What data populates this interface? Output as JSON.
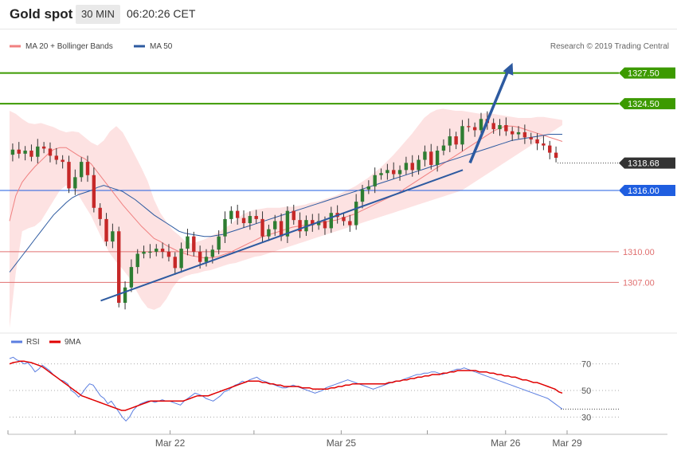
{
  "header": {
    "instrument": "Gold spot",
    "timeframe": "30 MIN",
    "time": "06:20:26 CET"
  },
  "legend": {
    "ma20_label": "MA 20 + Bollinger Bands",
    "ma50_label": "MA 50",
    "ma20_color": "#f08080",
    "ma50_color": "#2d5aa0"
  },
  "copyright": "Research © 2019 Trading Central",
  "colors": {
    "up": "#2e7d32",
    "down": "#c62828",
    "resistance": "#3c9a00",
    "pivot": "#1f5ee0",
    "support": "#e07070",
    "band": "#fde2e2",
    "trend": "#2d5aa0",
    "rsi": "#5b7ee0",
    "rsi_ma": "#e00000",
    "current": "#333333"
  },
  "chart_data": [
    {
      "type": "candlestick",
      "title": "Gold spot",
      "ylim": [
        1302.5,
        1329.5
      ],
      "levels": [
        {
          "value": 1327.5,
          "label": "1327.50",
          "kind": "resistance"
        },
        {
          "value": 1324.5,
          "label": "1324.50",
          "kind": "resistance"
        },
        {
          "value": 1318.68,
          "label": "1318.68",
          "kind": "current"
        },
        {
          "value": 1316.0,
          "label": "1316.00",
          "kind": "pivot"
        },
        {
          "value": 1310.0,
          "label": "1310.00",
          "kind": "support"
        },
        {
          "value": 1307.0,
          "label": "1307.00",
          "kind": "support"
        }
      ],
      "x_ticks": [
        "Mar 22",
        "Mar 25",
        "Mar 26",
        "Mar 29"
      ],
      "close_path": [
        1319.5,
        1320.0,
        1319.6,
        1319.9,
        1319.3,
        1320.3,
        1320.1,
        1319.4,
        1319.0,
        1318.8,
        1316.2,
        1317.3,
        1318.8,
        1317.5,
        1314.3,
        1313.2,
        1311.0,
        1312.0,
        1305.0,
        1306.5,
        1308.5,
        1309.8,
        1310.0,
        1310.0,
        1310.3,
        1310.0,
        1309.5,
        1308.4,
        1310.3,
        1311.5,
        1310.0,
        1309.0,
        1309.5,
        1310.2,
        1311.5,
        1313.2,
        1314.0,
        1313.3,
        1312.8,
        1313.5,
        1313.2,
        1311.5,
        1312.2,
        1313.0,
        1311.5,
        1314.0,
        1313.1,
        1312.0,
        1313.1,
        1312.6,
        1313.0,
        1312.3,
        1313.8,
        1313.4,
        1313.0,
        1312.6,
        1314.9,
        1316.1,
        1316.4,
        1317.5,
        1317.7,
        1318.0,
        1317.6,
        1318.0,
        1318.7,
        1318.0,
        1319.0,
        1319.8,
        1318.5,
        1319.9,
        1320.4,
        1321.3,
        1320.5,
        1322.3,
        1322.2,
        1321.9,
        1323.0,
        1322.6,
        1322.0,
        1322.4,
        1321.8,
        1321.5,
        1321.7,
        1321.2,
        1321.0,
        1320.6,
        1320.4,
        1319.7,
        1319.2
      ],
      "bb_upper": [
        1323.8,
        1323.5,
        1323.0,
        1322.6,
        1322.5,
        1322.6,
        1322.4,
        1322.2,
        1321.9,
        1321.7,
        1321.8,
        1321.7,
        1321.2,
        1320.7,
        1320.4,
        1320.9,
        1321.8,
        1322.3,
        1321.7,
        1320.6,
        1319.4,
        1318.2,
        1316.9,
        1315.1,
        1313.8,
        1312.9,
        1312.1,
        1311.6,
        1311.0,
        1310.8,
        1311.0,
        1311.2,
        1311.5,
        1311.8,
        1312.2,
        1312.6,
        1313.1,
        1313.6,
        1313.9,
        1314.1,
        1314.2,
        1314.3,
        1314.3,
        1314.3,
        1314.4,
        1314.4,
        1314.5,
        1314.6,
        1314.8,
        1314.9,
        1315.1,
        1315.3,
        1315.5,
        1315.8,
        1316.1,
        1316.4,
        1316.8,
        1317.2,
        1317.7,
        1318.2,
        1318.8,
        1319.4,
        1320.1,
        1320.8,
        1321.5,
        1322.3,
        1323.1,
        1323.6,
        1323.9,
        1324.0,
        1323.9,
        1323.8,
        1323.8,
        1323.7,
        1323.6,
        1323.5,
        1323.6,
        1323.5,
        1323.4,
        1323.3,
        1323.2,
        1323.1,
        1323.1,
        1323.1,
        1323.2,
        1323.2,
        1323.1,
        1323.0,
        1322.9
      ],
      "bb_lower": [
        1302.5,
        1308.0,
        1312.0,
        1312.3,
        1312.5,
        1313.0,
        1314.0,
        1315.0,
        1316.0,
        1316.5,
        1316.2,
        1315.5,
        1314.5,
        1313.5,
        1312.2,
        1310.9,
        1309.8,
        1309.0,
        1308.3,
        1307.5,
        1306.4,
        1305.3,
        1304.5,
        1304.3,
        1304.6,
        1305.4,
        1306.5,
        1307.3,
        1307.6,
        1307.8,
        1307.9,
        1308.1,
        1308.2,
        1308.4,
        1308.6,
        1308.8,
        1308.9,
        1309.1,
        1309.3,
        1309.5,
        1309.6,
        1309.8,
        1310.0,
        1310.2,
        1310.4,
        1310.6,
        1310.8,
        1311.0,
        1311.2,
        1311.4,
        1311.6,
        1311.8,
        1312.0,
        1312.2,
        1312.4,
        1312.6,
        1312.8,
        1313.0,
        1313.2,
        1313.4,
        1313.6,
        1313.8,
        1314.0,
        1314.2,
        1314.4,
        1314.6,
        1314.8,
        1315.0,
        1315.2,
        1315.4,
        1315.6,
        1315.8,
        1316.0,
        1316.4,
        1316.8,
        1317.2,
        1317.6,
        1318.0,
        1318.4,
        1318.8,
        1319.2,
        1319.6,
        1320.0,
        1320.4,
        1320.8,
        1321.2,
        1321.6,
        1322.0,
        1322.4
      ],
      "ma20": [
        1313.0,
        1315.5,
        1316.8,
        1317.6,
        1318.3,
        1318.9,
        1319.5,
        1320.0,
        1320.2,
        1320.2,
        1319.8,
        1319.4,
        1319.1,
        1318.6,
        1317.8,
        1317.0,
        1316.2,
        1315.4,
        1314.6,
        1313.9,
        1313.2,
        1312.5,
        1311.9,
        1311.3,
        1311.0,
        1310.6,
        1310.3,
        1310.0,
        1309.8,
        1309.6,
        1309.5,
        1309.4,
        1309.4,
        1309.5,
        1309.7,
        1309.9,
        1310.2,
        1310.5,
        1310.8,
        1311.1,
        1311.4,
        1311.6,
        1311.8,
        1312.0,
        1312.2,
        1312.4,
        1312.5,
        1312.6,
        1312.7,
        1312.8,
        1312.9,
        1313.0,
        1313.1,
        1313.3,
        1313.5,
        1313.7,
        1314.0,
        1314.3,
        1314.6,
        1314.9,
        1315.2,
        1315.5,
        1315.8,
        1316.2,
        1316.6,
        1317.0,
        1317.4,
        1317.8,
        1318.2,
        1318.6,
        1319.0,
        1319.4,
        1319.8,
        1320.2,
        1320.6,
        1321.0,
        1321.4,
        1321.8,
        1322.1,
        1322.3,
        1322.3,
        1322.2,
        1322.0,
        1321.8,
        1321.6,
        1321.4,
        1321.2,
        1321.0,
        1320.8
      ],
      "ma50": [
        1308.0,
        1308.8,
        1309.6,
        1310.4,
        1311.2,
        1312.0,
        1312.8,
        1313.6,
        1314.2,
        1314.8,
        1315.3,
        1315.6,
        1315.8,
        1316.0,
        1316.3,
        1316.5,
        1316.3,
        1316.1,
        1315.9,
        1315.5,
        1315.1,
        1314.6,
        1314.1,
        1313.6,
        1313.2,
        1312.8,
        1312.4,
        1312.0,
        1311.8,
        1311.7,
        1311.6,
        1311.5,
        1311.5,
        1311.6,
        1311.7,
        1311.9,
        1312.1,
        1312.3,
        1312.5,
        1312.7,
        1312.9,
        1313.1,
        1313.3,
        1313.5,
        1313.7,
        1313.9,
        1314.1,
        1314.3,
        1314.5,
        1314.7,
        1314.9,
        1315.1,
        1315.3,
        1315.5,
        1315.7,
        1315.9,
        1316.1,
        1316.3,
        1316.5,
        1316.7,
        1316.9,
        1317.1,
        1317.3,
        1317.5,
        1317.7,
        1317.9,
        1318.1,
        1318.3,
        1318.5,
        1318.7,
        1318.9,
        1319.1,
        1319.3,
        1319.5,
        1319.7,
        1319.9,
        1320.1,
        1320.3,
        1320.5,
        1320.7,
        1320.9,
        1321.0,
        1321.1,
        1321.2,
        1321.3,
        1321.4,
        1321.5,
        1321.5,
        1321.5
      ],
      "trendline": [
        [
          0.165,
          1305.2
        ],
        [
          0.82,
          1318.0
        ]
      ],
      "arrow": [
        [
          0.833,
          1318.7
        ],
        [
          0.91,
          1328.5
        ]
      ]
    },
    {
      "type": "line",
      "title": "RSI",
      "ylim": [
        20,
        80
      ],
      "y_ticks": [
        30,
        50,
        70
      ],
      "legend": [
        "RSI",
        "9MA"
      ],
      "series": [
        {
          "name": "RSI",
          "values": [
            74,
            75,
            73,
            72,
            70,
            71,
            68,
            64,
            66,
            69,
            67,
            65,
            62,
            60,
            58,
            57,
            55,
            50,
            48,
            45,
            48,
            52,
            55,
            54,
            50,
            46,
            44,
            40,
            42,
            38,
            34,
            30,
            27,
            30,
            35,
            38,
            40,
            41,
            42,
            42,
            41,
            42,
            43,
            42,
            42,
            41,
            40,
            39,
            42,
            44,
            46,
            48,
            47,
            46,
            44,
            43,
            42,
            44,
            46,
            49,
            50,
            52,
            54,
            55,
            57,
            56,
            58,
            59,
            60,
            58,
            57,
            56,
            55,
            54,
            53,
            52,
            52,
            53,
            54,
            53,
            52,
            51,
            50,
            49,
            48,
            49,
            50,
            52,
            53,
            54,
            55,
            56,
            57,
            58,
            57,
            56,
            55,
            54,
            53,
            52,
            51,
            52,
            53,
            54,
            55,
            56,
            57,
            57,
            58,
            59,
            60,
            61,
            62,
            62,
            63,
            63,
            64,
            64,
            63,
            62,
            63,
            64,
            65,
            66,
            66,
            67,
            66,
            65,
            64,
            63,
            62,
            61,
            60,
            59,
            58,
            57,
            56,
            55,
            54,
            53,
            52,
            51,
            50,
            49,
            48,
            47,
            46,
            45,
            44,
            42,
            40,
            38,
            36
          ]
        },
        {
          "name": "9MA",
          "values": [
            70,
            71,
            71.5,
            72,
            72,
            71.5,
            71,
            70,
            69,
            68,
            66,
            64,
            62,
            60,
            58,
            56,
            54,
            52,
            50,
            48,
            46,
            45,
            44,
            43,
            42,
            41,
            40,
            39,
            38,
            37,
            36,
            35,
            35,
            36,
            37,
            38,
            39,
            40,
            41,
            42,
            42,
            42,
            42,
            42,
            42,
            42,
            42,
            42,
            42,
            43,
            44,
            45,
            46,
            46,
            46,
            46,
            47,
            48,
            49,
            50,
            51,
            52,
            53,
            54,
            55,
            56,
            57,
            57,
            57,
            57,
            56,
            56,
            55,
            55,
            54,
            54,
            53,
            53,
            53,
            53,
            53,
            52,
            52,
            52,
            51,
            51,
            51,
            51,
            51,
            52,
            52,
            53,
            53,
            54,
            54,
            55,
            55,
            55,
            55,
            55,
            55,
            55,
            55,
            55,
            55,
            56,
            56,
            57,
            57,
            58,
            58,
            59,
            59,
            60,
            60,
            61,
            61,
            62,
            62,
            62,
            63,
            63,
            64,
            64,
            65,
            65,
            65,
            65,
            65,
            65,
            64,
            64,
            64,
            63,
            63,
            62,
            62,
            61,
            61,
            60,
            60,
            59,
            58,
            58,
            57,
            56,
            56,
            55,
            54,
            53,
            52,
            51,
            49,
            48
          ]
        }
      ]
    }
  ]
}
